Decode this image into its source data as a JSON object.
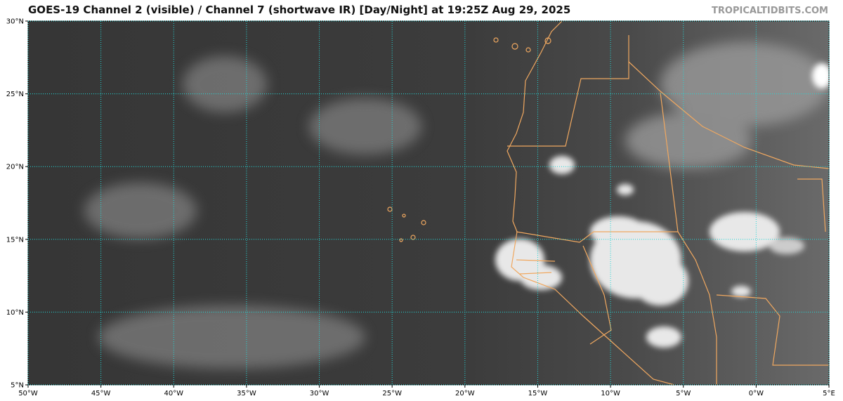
{
  "header": {
    "title": "GOES-19 Channel 2 (visible) / Channel 7 (shortwave IR) [Day/Night] at 19:25Z Aug 29, 2025",
    "watermark": "TROPICALTIDBITS.COM"
  },
  "map": {
    "xlim": [
      -50,
      5
    ],
    "ylim": [
      5,
      30
    ],
    "xticks": [
      {
        "value": -50,
        "label": "50°W"
      },
      {
        "value": -45,
        "label": "45°W"
      },
      {
        "value": -40,
        "label": "40°W"
      },
      {
        "value": -35,
        "label": "35°W"
      },
      {
        "value": -30,
        "label": "30°W"
      },
      {
        "value": -25,
        "label": "25°W"
      },
      {
        "value": -20,
        "label": "20°W"
      },
      {
        "value": -15,
        "label": "15°W"
      },
      {
        "value": -10,
        "label": "10°W"
      },
      {
        "value": -5,
        "label": "5°W"
      },
      {
        "value": 0,
        "label": "0°W"
      },
      {
        "value": 5,
        "label": "5°E"
      }
    ],
    "yticks": [
      {
        "value": 5,
        "label": "5°N"
      },
      {
        "value": 10,
        "label": "10°N"
      },
      {
        "value": 15,
        "label": "15°N"
      },
      {
        "value": 20,
        "label": "20°N"
      },
      {
        "value": 25,
        "label": "25°N"
      },
      {
        "value": 30,
        "label": "30°N"
      }
    ],
    "grid": true
  }
}
